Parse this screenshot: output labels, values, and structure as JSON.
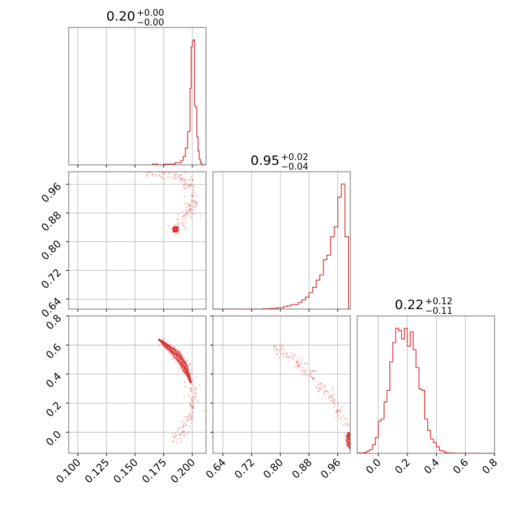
{
  "chart_data": {
    "type": "corner",
    "color": "#d62728",
    "grid": true,
    "parameters": [
      {
        "range": [
          0.092,
          0.212
        ],
        "ticks": [
          0.1,
          0.125,
          0.15,
          0.175,
          0.2
        ],
        "tick_labels": [
          "0.100",
          "0.125",
          "0.150",
          "0.175",
          "0.200"
        ],
        "title": {
          "value": "0.20",
          "plus": "+0.00",
          "minus": "−0.00"
        },
        "histogram": {
          "edges": [
            0.165,
            0.17,
            0.175,
            0.18,
            0.185,
            0.19,
            0.192,
            0.194,
            0.196,
            0.198,
            0.199,
            0.2,
            0.201,
            0.202,
            0.203,
            0.204,
            0.205,
            0.206,
            0.207,
            0.208,
            0.209,
            0.21,
            0.212
          ],
          "counts": [
            1,
            0,
            1,
            1,
            3,
            6,
            12,
            24,
            48,
            110,
            170,
            178,
            180,
            85,
            82,
            40,
            20,
            8,
            3,
            1,
            0,
            0
          ]
        }
      },
      {
        "range": [
          0.612,
          0.995
        ],
        "ticks": [
          0.64,
          0.72,
          0.8,
          0.88,
          0.96
        ],
        "tick_labels": [
          "0.64",
          "0.72",
          "0.80",
          "0.88",
          "0.96"
        ],
        "title": {
          "value": "0.95",
          "plus": "+0.02",
          "minus": "−0.04"
        },
        "histogram": {
          "edges": [
            0.612,
            0.75,
            0.77,
            0.79,
            0.81,
            0.82,
            0.83,
            0.84,
            0.85,
            0.86,
            0.87,
            0.88,
            0.89,
            0.9,
            0.91,
            0.92,
            0.93,
            0.94,
            0.95,
            0.96,
            0.97,
            0.98,
            0.99,
            0.995
          ],
          "counts": [
            0,
            0.5,
            1,
            2,
            4,
            5,
            7,
            7,
            10,
            14,
            18,
            25,
            33,
            44,
            52,
            75,
            82,
            110,
            125,
            170,
            190,
            110,
            0
          ]
        }
      },
      {
        "range": [
          -0.145,
          0.8
        ],
        "ticks": [
          0.0,
          0.2,
          0.4,
          0.6,
          0.8
        ],
        "tick_labels": [
          "0.0",
          "0.2",
          "0.4",
          "0.6",
          "0.8"
        ],
        "title": {
          "value": "0.22",
          "plus": "+0.12",
          "minus": "−0.11"
        },
        "histogram": {
          "edges": [
            -0.145,
            -0.1,
            -0.08,
            -0.06,
            -0.04,
            -0.02,
            0.0,
            0.02,
            0.04,
            0.06,
            0.08,
            0.1,
            0.12,
            0.14,
            0.16,
            0.18,
            0.2,
            0.22,
            0.24,
            0.26,
            0.28,
            0.3,
            0.32,
            0.34,
            0.36,
            0.38,
            0.4,
            0.42,
            0.44,
            0.46,
            0.48,
            0.5,
            0.52,
            0.54,
            0.56,
            0.58,
            0.6,
            0.62,
            0.64,
            0.66,
            0.8
          ],
          "counts": [
            0.5,
            1,
            3,
            5,
            12,
            22,
            45,
            48,
            72,
            88,
            128,
            155,
            175,
            172,
            160,
            175,
            150,
            170,
            145,
            120,
            90,
            88,
            48,
            32,
            20,
            15,
            9,
            4,
            3,
            1,
            0.5,
            0.5,
            0.3,
            0.2,
            0.1,
            0.1,
            0.2,
            0.1,
            0.1,
            0
          ]
        }
      }
    ],
    "curves": {
      "p0_p1": [
        [
          0.16,
          0.992
        ],
        [
          0.175,
          0.99
        ],
        [
          0.185,
          0.985
        ],
        [
          0.192,
          0.975
        ],
        [
          0.197,
          0.96
        ],
        [
          0.2,
          0.945
        ],
        [
          0.2015,
          0.93
        ],
        [
          0.2015,
          0.915
        ],
        [
          0.2,
          0.9
        ],
        [
          0.197,
          0.885
        ],
        [
          0.193,
          0.865
        ],
        [
          0.188,
          0.845
        ],
        [
          0.183,
          0.825
        ]
      ],
      "p0_p2": [
        [
          0.172,
          0.63
        ],
        [
          0.18,
          0.58
        ],
        [
          0.187,
          0.53
        ],
        [
          0.192,
          0.47
        ],
        [
          0.196,
          0.4
        ],
        [
          0.199,
          0.33
        ],
        [
          0.2005,
          0.26
        ],
        [
          0.2005,
          0.2
        ],
        [
          0.199,
          0.14
        ],
        [
          0.196,
          0.08
        ],
        [
          0.193,
          0.03
        ],
        [
          0.19,
          -0.01
        ],
        [
          0.187,
          -0.05
        ],
        [
          0.184,
          -0.08
        ]
      ],
      "p1_p2": [
        [
          0.78,
          0.6
        ],
        [
          0.82,
          0.53
        ],
        [
          0.85,
          0.47
        ],
        [
          0.88,
          0.4
        ],
        [
          0.9,
          0.35
        ],
        [
          0.92,
          0.3
        ],
        [
          0.94,
          0.24
        ],
        [
          0.96,
          0.17
        ],
        [
          0.975,
          0.1
        ],
        [
          0.985,
          0.04
        ],
        [
          0.991,
          -0.02
        ],
        [
          0.994,
          -0.07
        ],
        [
          0.995,
          -0.12
        ]
      ]
    },
    "core": {
      "p0_p1": [
        0.925,
        0.99
      ],
      "p0_p2": [
        -0.02,
        0.45
      ],
      "p1_p2": [
        0.87,
        0.995
      ]
    }
  }
}
